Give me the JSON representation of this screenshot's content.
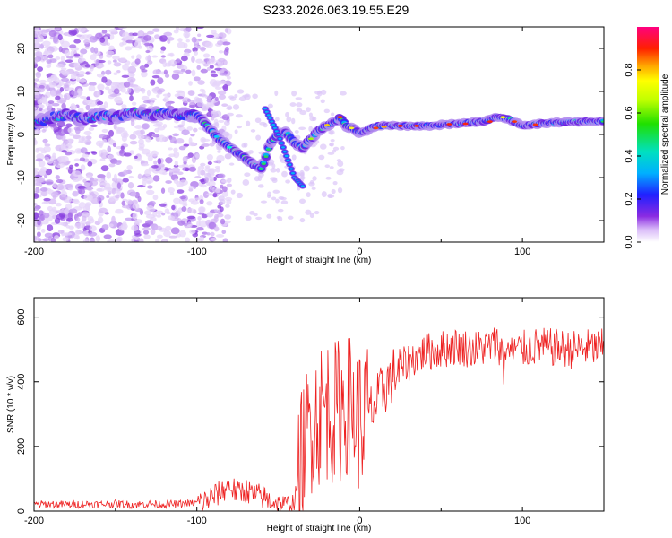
{
  "title": "S233.2026.063.19.55.E29",
  "chart_data": [
    {
      "type": "heatmap",
      "xlabel": "Height of straight line (km)",
      "ylabel": "Frequency (Hz)",
      "xlim": [
        -200,
        150
      ],
      "ylim": [
        -25,
        25
      ],
      "xticks": [
        -200,
        -100,
        0,
        100
      ],
      "yticks": [
        -20,
        -10,
        0,
        10,
        20
      ],
      "colorbar": {
        "label": "Normalized spectral amplitude",
        "range": [
          0,
          1
        ],
        "ticks": [
          0.0,
          0.2,
          0.4,
          0.6,
          0.8
        ],
        "tick_labels": [
          "0.0",
          "0.2",
          "0.4",
          "0.6",
          "0.8"
        ]
      },
      "ridges": [
        {
          "name": "main carrier",
          "points": [
            [
              -200,
              2.5
            ],
            [
              -190,
              4
            ],
            [
              -180,
              4.5
            ],
            [
              -170,
              3.5
            ],
            [
              -160,
              4.5
            ],
            [
              -150,
              4
            ],
            [
              -140,
              5
            ],
            [
              -130,
              4.5
            ],
            [
              -120,
              5
            ],
            [
              -110,
              4.5
            ],
            [
              -100,
              4.5
            ],
            [
              -95,
              2.5
            ],
            [
              -88,
              -0.5
            ],
            [
              -80,
              -3
            ],
            [
              -72,
              -5
            ],
            [
              -65,
              -7
            ],
            [
              -60,
              -8
            ],
            [
              -55,
              -2
            ],
            [
              -50,
              0
            ],
            [
              -45,
              0.5
            ],
            [
              -40,
              -2
            ],
            [
              -35,
              -3
            ],
            [
              -30,
              -1
            ],
            [
              -25,
              1
            ],
            [
              -20,
              2
            ],
            [
              -15,
              3
            ],
            [
              -12,
              4
            ],
            [
              -8,
              2
            ],
            [
              -5,
              1.5
            ],
            [
              0,
              0.5
            ],
            [
              5,
              1
            ],
            [
              10,
              2
            ],
            [
              20,
              2
            ],
            [
              40,
              2
            ],
            [
              60,
              2.5
            ],
            [
              75,
              3
            ],
            [
              85,
              4
            ],
            [
              92,
              3.5
            ],
            [
              100,
              2
            ],
            [
              110,
              2.5
            ],
            [
              130,
              3
            ],
            [
              150,
              3
            ]
          ]
        },
        {
          "name": "secondary branch",
          "points": [
            [
              -58,
              6
            ],
            [
              -54,
              3
            ],
            [
              -50,
              0
            ],
            [
              -46,
              -4
            ],
            [
              -42,
              -8
            ],
            [
              -40,
              -10
            ],
            [
              -35,
              -12
            ]
          ]
        }
      ]
    },
    {
      "type": "line",
      "xlabel": "Height of straight line (km)",
      "ylabel": "SNR (10 * v/v)",
      "xlim": [
        -200,
        150
      ],
      "ylim": [
        0,
        660
      ],
      "xticks": [
        -200,
        -100,
        0,
        100
      ],
      "yticks": [
        0,
        200,
        400,
        600
      ],
      "color": "#ee2222",
      "series": [
        {
          "name": "SNR",
          "x": [
            -200,
            -190,
            -180,
            -170,
            -160,
            -150,
            -140,
            -130,
            -120,
            -110,
            -100,
            -95,
            -90,
            -85,
            -80,
            -75,
            -70,
            -65,
            -60,
            -55,
            -50,
            -45,
            -40,
            -35,
            -30,
            -25,
            -20,
            -15,
            -10,
            -5,
            0,
            5,
            10,
            15,
            20,
            25,
            30,
            35,
            40,
            50,
            60,
            70,
            80,
            85,
            90,
            95,
            100,
            110,
            120,
            130,
            140,
            150
          ],
          "values": [
            20,
            22,
            20,
            22,
            21,
            23,
            20,
            22,
            21,
            22,
            25,
            30,
            45,
            60,
            80,
            55,
            65,
            50,
            45,
            30,
            25,
            20,
            30,
            170,
            280,
            300,
            320,
            300,
            330,
            320,
            280,
            300,
            330,
            380,
            420,
            440,
            460,
            480,
            490,
            500,
            510,
            500,
            510,
            520,
            460,
            500,
            500,
            510,
            505,
            500,
            505,
            505
          ]
        }
      ]
    }
  ]
}
